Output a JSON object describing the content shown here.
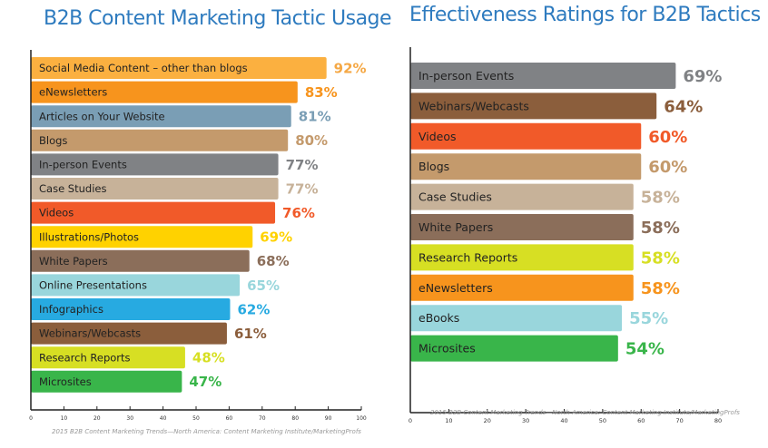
{
  "chart_data": [
    {
      "type": "bar",
      "orientation": "horizontal",
      "title": "B2B Content Marketing Tactic Usage",
      "xlabel": "",
      "ylabel": "",
      "xlim": [
        0,
        100
      ],
      "x_ticks": [
        0,
        10,
        20,
        30,
        40,
        50,
        60,
        70,
        80,
        90,
        100
      ],
      "grid": false,
      "source": "2015 B2B Content Marketing Trends—North America: Content Marketing Institute/MarketingProfs",
      "categories": [
        "Social Media Content – other than blogs",
        "eNewsletters",
        "Articles on Your Website",
        "Blogs",
        "In-person Events",
        "Case Studies",
        "Videos",
        "Illustrations/Photos",
        "White Papers",
        "Online Presentations",
        "Infographics",
        "Webinars/Webcasts",
        "Research Reports",
        "Microsites"
      ],
      "values": [
        92,
        83,
        81,
        80,
        77,
        77,
        76,
        69,
        68,
        65,
        62,
        61,
        48,
        47
      ],
      "value_labels": [
        "92%",
        "83%",
        "81%",
        "80%",
        "77%",
        "77%",
        "76%",
        "69%",
        "68%",
        "65%",
        "62%",
        "61%",
        "48%",
        "47%"
      ],
      "colors": [
        "#fbb040",
        "#f7941d",
        "#7a9eb5",
        "#c49a6c",
        "#808285",
        "#c7b299",
        "#f15a29",
        "#ffd200",
        "#8b6e5a",
        "#99d6dc",
        "#27aae1",
        "#8b5e3c",
        "#d7df23",
        "#39b54a"
      ],
      "value_colors": [
        "#f5a845",
        "#f7941d",
        "#7a9eb5",
        "#c49a6c",
        "#808285",
        "#c7b299",
        "#f15a29",
        "#ffd200",
        "#8b6e5a",
        "#99d6dc",
        "#27aae1",
        "#8b5e3c",
        "#d7df23",
        "#39b54a"
      ]
    },
    {
      "type": "bar",
      "orientation": "horizontal",
      "title": "Effectiveness Ratings for B2B Tactics",
      "xlabel": "",
      "ylabel": "",
      "xlim": [
        0,
        80
      ],
      "x_ticks": [
        0,
        10,
        20,
        30,
        40,
        50,
        60,
        70,
        80
      ],
      "grid": false,
      "source": "2015 B2B Content Marketing Trends—North America: Content Marketing Institute/MarketingProfs",
      "categories": [
        "In-person Events",
        "Webinars/Webcasts",
        "Videos",
        "Blogs",
        "Case Studies",
        "White Papers",
        "Research Reports",
        "eNewsletters",
        "eBooks",
        "Microsites"
      ],
      "values": [
        69,
        64,
        60,
        60,
        58,
        58,
        58,
        58,
        55,
        54
      ],
      "value_labels": [
        "69%",
        "64%",
        "60%",
        "60%",
        "58%",
        "58%",
        "58%",
        "58%",
        "55%",
        "54%"
      ],
      "colors": [
        "#808285",
        "#8b5e3c",
        "#f15a29",
        "#c49a6c",
        "#c7b299",
        "#8b6e5a",
        "#d7df23",
        "#f7941d",
        "#99d6dc",
        "#39b54a"
      ],
      "value_colors": [
        "#808285",
        "#8b5e3c",
        "#f15a29",
        "#c49a6c",
        "#c7b299",
        "#8b6e5a",
        "#d7df23",
        "#f7941d",
        "#99d6dc",
        "#39b54a"
      ]
    }
  ]
}
